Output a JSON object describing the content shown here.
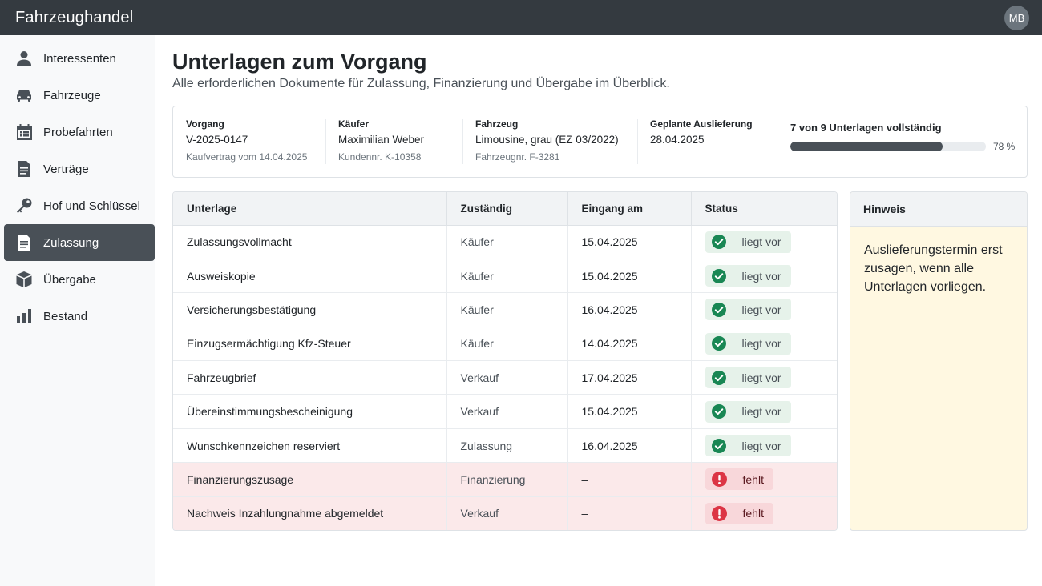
{
  "app": {
    "title": "Fahrzeughandel",
    "user_initials": "MB"
  },
  "sidebar": {
    "items": [
      {
        "label": "Interessenten",
        "icon": "person-icon"
      },
      {
        "label": "Fahrzeuge",
        "icon": "car-icon"
      },
      {
        "label": "Probefahrten",
        "icon": "calendar-icon"
      },
      {
        "label": "Verträge",
        "icon": "document-icon"
      },
      {
        "label": "Hof und Schlüssel",
        "icon": "key-icon"
      },
      {
        "label": "Zulassung",
        "icon": "document-icon",
        "active": true
      },
      {
        "label": "Übergabe",
        "icon": "box-icon"
      },
      {
        "label": "Bestand",
        "icon": "bar-chart-icon"
      }
    ]
  },
  "page": {
    "title": "Unterlagen zum Vorgang",
    "subtitle": "Alle erforderlichen Dokumente für Zulassung, Finanzierung und Übergabe im Überblick."
  },
  "summary": {
    "vorgang": {
      "label": "Vorgang",
      "value": "V-2025-0147",
      "sub": "Kaufvertrag vom 14.04.2025"
    },
    "kaeufer": {
      "label": "Käufer",
      "value": "Maximilian Weber",
      "sub": "Kundennr. K-10358"
    },
    "fahrzeug": {
      "label": "Fahrzeug",
      "value": "Limousine, grau (EZ 03/2022)",
      "sub": "Fahrzeugnr. F-3281"
    },
    "auslieferung": {
      "label": "Geplante Auslieferung",
      "value": "28.04.2025"
    },
    "progress": {
      "label": "7 von 9 Unterlagen vollständig",
      "percent_label": "78 %",
      "fraction": 0.78
    }
  },
  "table": {
    "headers": [
      "Unterlage",
      "Zuständig",
      "Eingang am",
      "Status"
    ],
    "rows": [
      {
        "unterlage": "Zulassungsvollmacht",
        "zustaendig": "Käufer",
        "eingang": "15.04.2025",
        "status": "liegt vor",
        "ok": true
      },
      {
        "unterlage": "Ausweiskopie",
        "zustaendig": "Käufer",
        "eingang": "15.04.2025",
        "status": "liegt vor",
        "ok": true
      },
      {
        "unterlage": "Versicherungsbestätigung",
        "zustaendig": "Käufer",
        "eingang": "16.04.2025",
        "status": "liegt vor",
        "ok": true
      },
      {
        "unterlage": "Einzugsermächtigung Kfz-Steuer",
        "zustaendig": "Käufer",
        "eingang": "14.04.2025",
        "status": "liegt vor",
        "ok": true
      },
      {
        "unterlage": "Fahrzeugbrief",
        "zustaendig": "Verkauf",
        "eingang": "17.04.2025",
        "status": "liegt vor",
        "ok": true
      },
      {
        "unterlage": "Übereinstimmungsbescheinigung",
        "zustaendig": "Verkauf",
        "eingang": "15.04.2025",
        "status": "liegt vor",
        "ok": true
      },
      {
        "unterlage": "Wunschkennzeichen reserviert",
        "zustaendig": "Zulassung",
        "eingang": "16.04.2025",
        "status": "liegt vor",
        "ok": true
      },
      {
        "unterlage": "Finanzierungszusage",
        "zustaendig": "Finanzierung",
        "eingang": "–",
        "status": "fehlt",
        "ok": false
      },
      {
        "unterlage": "Nachweis Inzahlungnahme abgemeldet",
        "zustaendig": "Verkauf",
        "eingang": "–",
        "status": "fehlt",
        "ok": false
      }
    ]
  },
  "hint": {
    "title": "Hinweis",
    "text": "Auslieferungstermin erst zusagen, wenn alle Unterlagen vorliegen."
  },
  "colors": {
    "ok": "#198754",
    "missing": "#dc3545",
    "topbar": "#343a40",
    "active_nav": "#495057",
    "hint_bg": "#fff8e1"
  }
}
